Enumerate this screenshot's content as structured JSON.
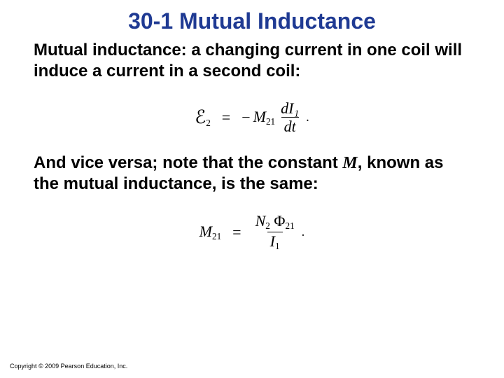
{
  "title": {
    "text": "30-1 Mutual Inductance",
    "color": "#1f3a93",
    "fontsize": 32
  },
  "para1": {
    "text": "Mutual inductance: a changing current in one coil will induce a current in a second coil:",
    "color": "#000000",
    "fontsize": 24
  },
  "equation1": {
    "lhs_symbol": "ℰ",
    "lhs_sub": "2",
    "eq_sign": "=",
    "minus": "−",
    "coef_symbol": "M",
    "coef_sub": "21",
    "frac_num": "dI₁",
    "frac_den": "dt",
    "trailing": ".",
    "color": "#000000",
    "fontsize": 22
  },
  "para2": {
    "prefix": "And vice versa; note that the constant ",
    "mid_symbol": "M",
    "suffix": ", known as the mutual inductance, is the same:",
    "color": "#000000",
    "fontsize": 24
  },
  "equation2": {
    "lhs_symbol": "M",
    "lhs_sub": "21",
    "eq_sign": "=",
    "frac_num_left": "N",
    "frac_num_left_sub": "2",
    "frac_num_right": "Φ",
    "frac_num_right_sub": "21",
    "frac_den": "I",
    "frac_den_sub": "1",
    "trailing": ".",
    "color": "#000000",
    "fontsize": 22
  },
  "copyright": {
    "text": "Copyright © 2009 Pearson Education, Inc.",
    "color": "#000000",
    "fontsize": 9
  },
  "background_color": "#ffffff"
}
